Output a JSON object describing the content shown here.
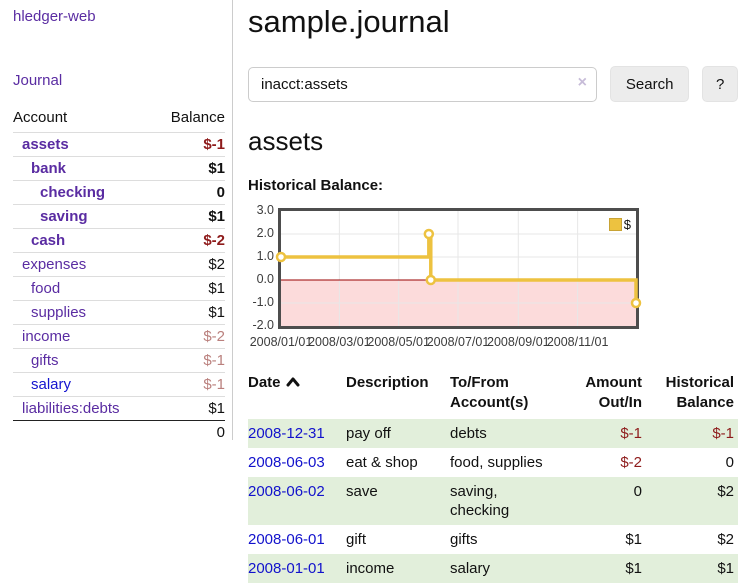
{
  "app": {
    "title": "hledger-web",
    "nav_journal": "Journal"
  },
  "colors": {
    "accent_purple": "#5a2ca2",
    "link_blue": "#1414cf",
    "date_blue": "#1212cc",
    "negative_strong": "#8e1b1b",
    "negative_muted": "#ba807d",
    "row_highlight_green": "#e2efdb",
    "series_gold": "#edc240"
  },
  "sidebar": {
    "header": {
      "account": "Account",
      "balance": "Balance"
    },
    "accounts": [
      {
        "name": "assets",
        "level": 0,
        "bold": true,
        "link_color": "purple",
        "balance": "$-1",
        "balance_style": "neg-strong"
      },
      {
        "name": "bank",
        "level": 1,
        "bold": true,
        "link_color": "purple",
        "balance": "$1",
        "balance_style": "norm"
      },
      {
        "name": "checking",
        "level": 2,
        "bold": true,
        "link_color": "purple",
        "balance": "0",
        "balance_style": "norm"
      },
      {
        "name": "saving",
        "level": 2,
        "bold": true,
        "link_color": "purple",
        "balance": "$1",
        "balance_style": "norm"
      },
      {
        "name": "cash",
        "level": 1,
        "bold": true,
        "link_color": "purple",
        "balance": "$-2",
        "balance_style": "neg-strong"
      },
      {
        "name": "expenses",
        "level": 0,
        "bold": false,
        "link_color": "purple",
        "balance": "$2",
        "balance_style": "norm"
      },
      {
        "name": "food",
        "level": 1,
        "bold": false,
        "link_color": "purple",
        "balance": "$1",
        "balance_style": "norm"
      },
      {
        "name": "supplies",
        "level": 1,
        "bold": false,
        "link_color": "purple",
        "balance": "$1",
        "balance_style": "norm"
      },
      {
        "name": "income",
        "level": 0,
        "bold": false,
        "link_color": "purple",
        "balance": "$-2",
        "balance_style": "neg-muted"
      },
      {
        "name": "gifts",
        "level": 1,
        "bold": false,
        "link_color": "purple",
        "balance": "$-1",
        "balance_style": "neg-muted"
      },
      {
        "name": "salary",
        "level": 1,
        "bold": false,
        "link_color": "blue",
        "balance": "$-1",
        "balance_style": "neg-muted"
      },
      {
        "name": "liabilities:debts",
        "level": 0,
        "bold": false,
        "link_color": "purple",
        "balance": "$1",
        "balance_style": "norm"
      }
    ],
    "total": "0"
  },
  "main": {
    "title": "sample.journal",
    "search": {
      "value": "inacct:assets",
      "clear_icon": "×",
      "button": "Search",
      "help_button": "?"
    },
    "account_heading": "assets"
  },
  "chart_data": {
    "type": "line",
    "title": "Historical Balance:",
    "series": [
      {
        "name": "$",
        "color": "#edc240",
        "step": true,
        "points": [
          [
            "2008-01-01",
            1
          ],
          [
            "2008-06-01",
            2
          ],
          [
            "2008-06-03",
            0
          ],
          [
            "2008-12-31",
            -1
          ]
        ]
      }
    ],
    "x_range": [
      "2008-01-01",
      "2008-12-31"
    ],
    "x_ticks": [
      "2008/01/01",
      "2008/03/01",
      "2008/05/01",
      "2008/07/01",
      "2008/09/01",
      "2008/11/01"
    ],
    "y_ticks": [
      "3.0",
      "2.0",
      "1.0",
      "0.0",
      "-1.0",
      "-2.0"
    ],
    "ylim": [
      -2,
      3
    ],
    "grid": true,
    "negative_region_fill": "#fcdbdb",
    "zero_line_color": "#990000",
    "grid_color": "#e7e7e7",
    "border_color": "#4d4d4d",
    "legend": {
      "label": "$",
      "swatch_color": "#edc240",
      "position": "top-right"
    }
  },
  "table": {
    "headers": [
      {
        "label": "Date",
        "sorted": "ascending",
        "sort_icon": "chevron-up"
      },
      {
        "label": "Description"
      },
      {
        "label": "To/From Account(s)"
      },
      {
        "label": "Amount Out/In"
      },
      {
        "label": "Historical Balance"
      }
    ],
    "rows": [
      {
        "date": "2008-12-31",
        "description": "pay off",
        "accounts": "debts",
        "amount": "$-1",
        "amount_neg": true,
        "balance": "$-1",
        "balance_neg": true
      },
      {
        "date": "2008-06-03",
        "description": "eat & shop",
        "accounts": "food, supplies",
        "amount": "$-2",
        "amount_neg": true,
        "balance": "0",
        "balance_neg": false
      },
      {
        "date": "2008-06-02",
        "description": "save",
        "accounts": "saving, checking",
        "amount": "0",
        "amount_neg": false,
        "balance": "$2",
        "balance_neg": false
      },
      {
        "date": "2008-06-01",
        "description": "gift",
        "accounts": "gifts",
        "amount": "$1",
        "amount_neg": false,
        "balance": "$2",
        "balance_neg": false
      },
      {
        "date": "2008-01-01",
        "description": "income",
        "accounts": "salary",
        "amount": "$1",
        "amount_neg": false,
        "balance": "$1",
        "balance_neg": false
      }
    ]
  }
}
